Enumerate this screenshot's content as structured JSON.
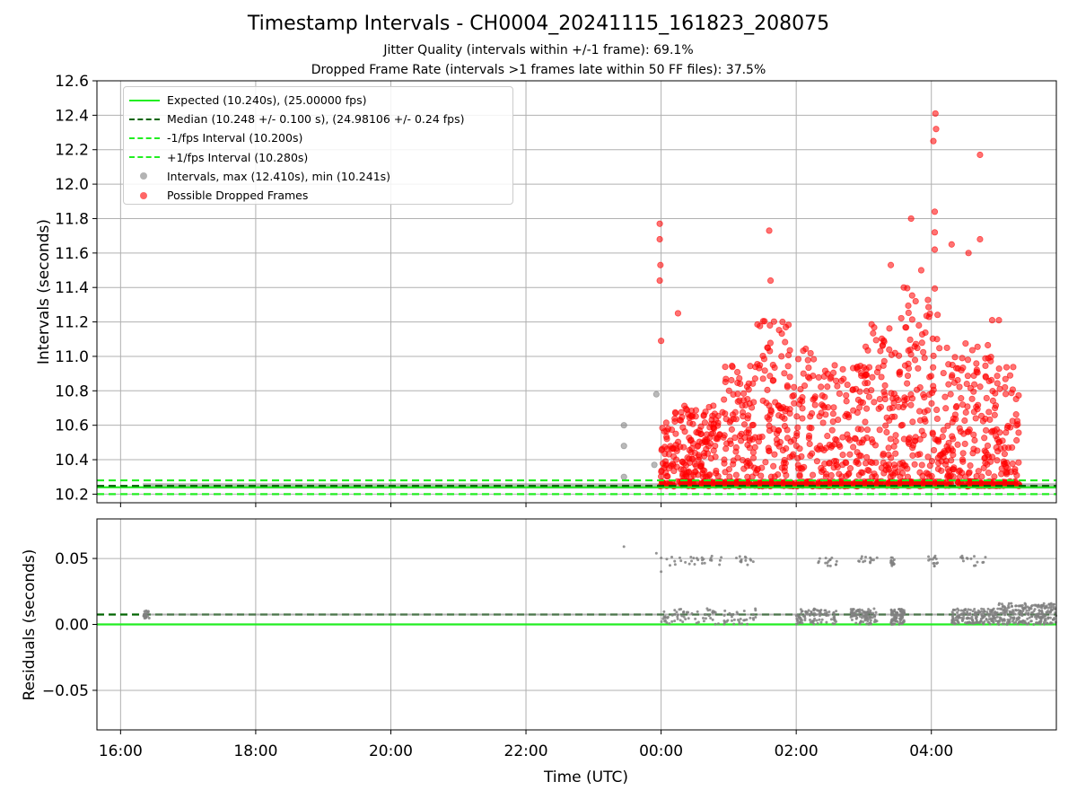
{
  "title": "Timestamp Intervals - CH0004_20241115_161823_208075",
  "subtitle_1": "Jitter Quality (intervals within +/-1 frame): 69.1%",
  "subtitle_2": "Dropped Frame Rate (intervals >1 frames late within 50 FF files): 37.5%",
  "colors": {
    "expected": "#22ee22",
    "median": "#006400",
    "dropped": "#ff0000",
    "normal": "#808080"
  },
  "legend": [
    {
      "label": "Expected (10.240s), (25.00000 fps)",
      "style": "solid",
      "color": "#22ee22"
    },
    {
      "label": "Median (10.248 +/- 0.100 s), (24.98106 +/- 0.24 fps)",
      "style": "dashed",
      "color": "#006400"
    },
    {
      "label": "-1/fps Interval (10.200s)",
      "style": "dashed",
      "color": "#22ee22"
    },
    {
      "label": "+1/fps Interval (10.280s)",
      "style": "dashed",
      "color": "#22ee22"
    },
    {
      "label": "Intervals, max (12.410s), min (10.241s)",
      "style": "dot",
      "color": "#808080"
    },
    {
      "label": "Possible Dropped Frames",
      "style": "dot",
      "color": "#ff0000"
    }
  ],
  "chart_data": [
    {
      "type": "scatter",
      "ylabel": "Intervals (seconds)",
      "ylim": [
        10.15,
        12.6
      ],
      "yticks": [
        "10.2",
        "10.4",
        "10.6",
        "10.8",
        "11.0",
        "11.2",
        "11.4",
        "11.6",
        "11.8",
        "12.0",
        "12.2",
        "12.4",
        "12.6"
      ],
      "yticks_values": [
        10.2,
        10.4,
        10.6,
        10.8,
        11.0,
        11.2,
        11.4,
        11.6,
        11.8,
        12.0,
        12.2,
        12.4,
        12.6
      ],
      "xlim_hours": [
        15.65,
        29.85
      ],
      "grid": true,
      "legend_position": "top-left",
      "reference_lines": [
        {
          "name": "Expected",
          "value": 10.24
        },
        {
          "name": "Median",
          "value": 10.248
        },
        {
          "name": "-1/fps Interval",
          "value": 10.2
        },
        {
          "name": "+1/fps Interval",
          "value": 10.28
        }
      ],
      "series": [
        {
          "name": "Intervals",
          "x_hours_range": [
            16.33,
            29.85
          ],
          "baseline_value": 10.248,
          "notable_points": [
            [
              23.45,
              10.6
            ],
            [
              23.45,
              10.48
            ],
            [
              23.45,
              10.3
            ],
            [
              23.93,
              10.78
            ],
            [
              23.9,
              10.37
            ]
          ]
        },
        {
          "name": "Possible Dropped Frames",
          "x_hours_range": [
            23.97,
            29.3
          ],
          "notable_points": [
            [
              23.98,
              11.77
            ],
            [
              23.98,
              11.68
            ],
            [
              23.99,
              11.53
            ],
            [
              23.98,
              11.44
            ],
            [
              24.0,
              11.09
            ],
            [
              24.25,
              11.25
            ],
            [
              25.6,
              11.73
            ],
            [
              25.62,
              11.44
            ],
            [
              27.4,
              11.53
            ],
            [
              27.7,
              11.8
            ],
            [
              27.85,
              11.5
            ],
            [
              28.05,
              11.84
            ],
            [
              28.05,
              11.72
            ],
            [
              28.05,
              11.62
            ],
            [
              28.06,
              12.41
            ],
            [
              28.07,
              12.32
            ],
            [
              28.03,
              12.25
            ],
            [
              28.3,
              11.65
            ],
            [
              28.55,
              11.6
            ],
            [
              28.72,
              11.68
            ],
            [
              28.72,
              12.17
            ],
            [
              28.9,
              11.21
            ],
            [
              29.0,
              11.21
            ],
            [
              29.0,
              10.5
            ]
          ]
        }
      ]
    },
    {
      "type": "scatter",
      "ylabel": "Residuals (seconds)",
      "ylim": [
        -0.08,
        0.08
      ],
      "yticks": [
        "−0.05",
        "0.00",
        "0.05"
      ],
      "yticks_values": [
        -0.05,
        0.0,
        0.05
      ],
      "xlabel": "Time (UTC)",
      "xticks": [
        "16:00",
        "18:00",
        "20:00",
        "22:00",
        "00:00",
        "02:00",
        "04:00"
      ],
      "xticks_hours": [
        16,
        18,
        20,
        22,
        24,
        26,
        28
      ],
      "xlim_hours": [
        15.65,
        29.85
      ],
      "grid": true,
      "reference_lines": [
        {
          "name": "Expected",
          "value": 0.0
        },
        {
          "name": "Median",
          "value": 0.0075
        }
      ],
      "series": [
        {
          "name": "Residuals",
          "baseline_value": 0.0075,
          "upper_cluster_value": 0.048,
          "notable_points": [
            [
              23.45,
              0.059
            ],
            [
              23.93,
              0.054
            ],
            [
              26.5,
              0.049
            ],
            [
              27.45,
              0.049
            ],
            [
              28.8,
              0.051
            ],
            [
              24.0,
              0.04
            ]
          ]
        }
      ]
    }
  ]
}
